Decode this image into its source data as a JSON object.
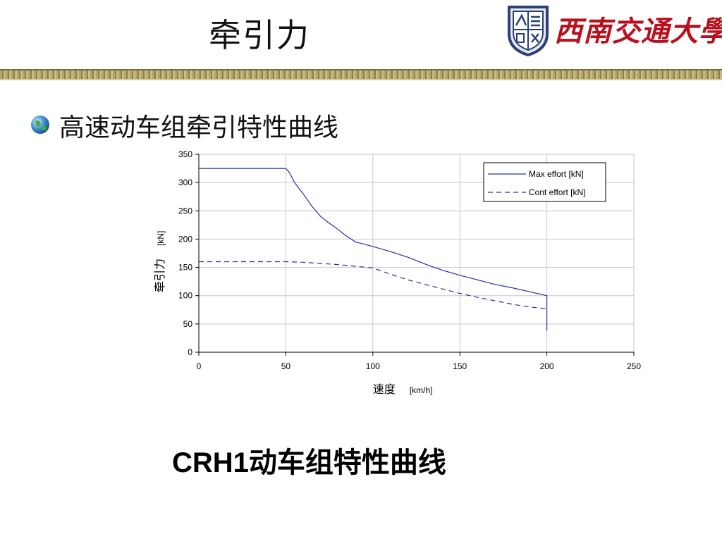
{
  "slide": {
    "title": "牵引力",
    "logo_text": "西南交通大學",
    "bullet": "高速动车组牵引特性曲线",
    "caption_latin": "CRH1",
    "caption_rest": "动车组特性曲线"
  },
  "colors": {
    "series": "#2a2ab0",
    "title_logo": "#b8101c",
    "grid": "#c8c8c8"
  },
  "chart_data": {
    "type": "line",
    "title": "",
    "xlabel": "速度",
    "xlabel_unit": "[km/h]",
    "ylabel": "牵引力",
    "ylabel_unit": "[kN]",
    "xlim": [
      0,
      250
    ],
    "ylim": [
      0,
      350
    ],
    "xticks": [
      0,
      50,
      100,
      150,
      200,
      250
    ],
    "yticks": [
      0,
      50,
      100,
      150,
      200,
      250,
      300,
      350
    ],
    "grid": true,
    "legend_position": "top-right",
    "series": [
      {
        "name": "Max effort [kN]",
        "style": "solid",
        "x": [
          0,
          50,
          52,
          55,
          60,
          65,
          70,
          75,
          80,
          85,
          90,
          95,
          100,
          110,
          120,
          130,
          140,
          150,
          160,
          170,
          180,
          190,
          200,
          200
        ],
        "y": [
          325,
          325,
          318,
          300,
          280,
          258,
          240,
          228,
          217,
          205,
          195,
          191,
          187,
          178,
          168,
          156,
          145,
          136,
          128,
          120,
          114,
          107,
          100,
          38
        ]
      },
      {
        "name": "Cont effort [kN]",
        "style": "dashed",
        "x": [
          0,
          20,
          40,
          50,
          60,
          70,
          80,
          90,
          100,
          110,
          120,
          130,
          140,
          150,
          160,
          170,
          180,
          190,
          200
        ],
        "y": [
          160,
          160,
          160,
          160,
          159,
          157,
          155,
          152,
          149,
          138,
          128,
          120,
          112,
          104,
          97,
          91,
          85,
          80,
          77
        ]
      }
    ]
  }
}
